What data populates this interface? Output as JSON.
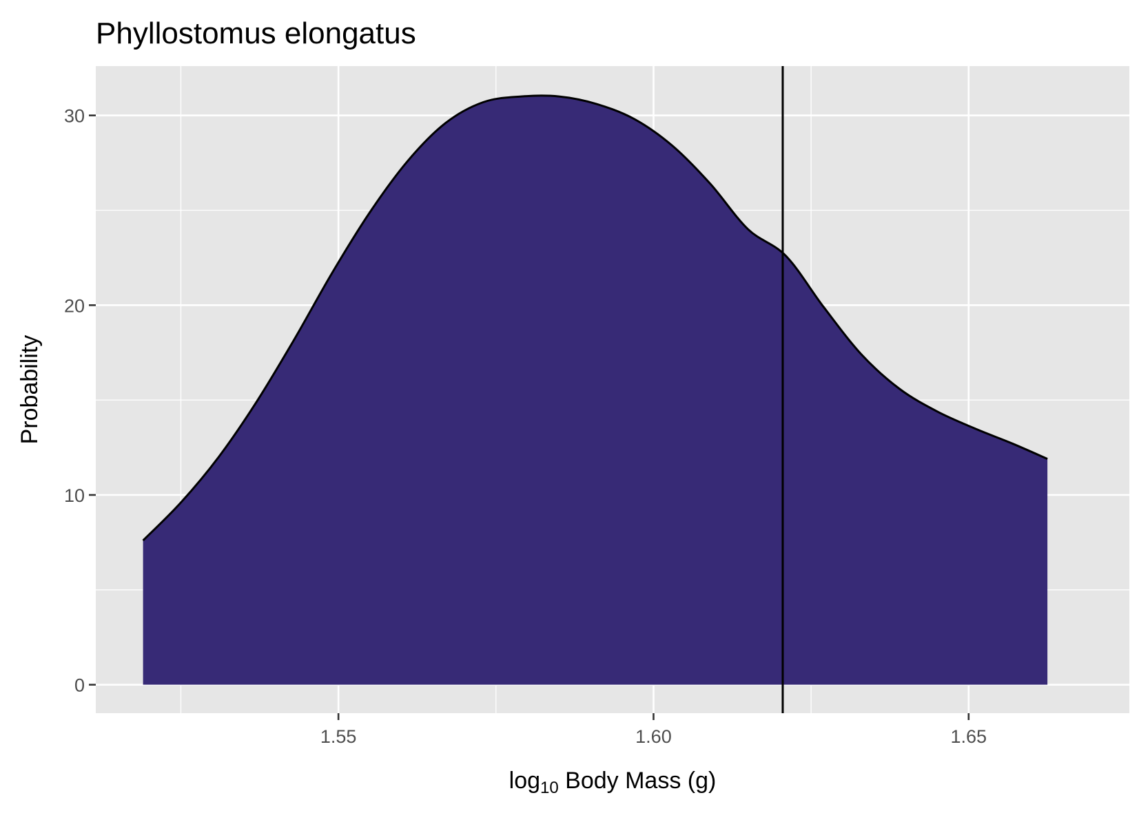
{
  "chart_data": {
    "type": "area",
    "title": "Phyllostomus elongatus",
    "xlabel": {
      "prefix": "log",
      "subscript": "10",
      "suffix": " Body Mass (g)"
    },
    "ylabel": "Probability",
    "xlim": [
      1.5115,
      1.6755
    ],
    "ylim": [
      -1.5,
      32.6
    ],
    "x_ticks": [
      1.55,
      1.6,
      1.65
    ],
    "x_tick_labels": [
      "1.55",
      "1.60",
      "1.65"
    ],
    "y_ticks": [
      0,
      10,
      20,
      30
    ],
    "y_tick_labels": [
      "0",
      "10",
      "20",
      "30"
    ],
    "grid": true,
    "vline_x": 1.6205,
    "fill_color": "#372a76",
    "panel_color": "#e6e6e6",
    "series": [
      {
        "x": [
          1.519,
          1.525,
          1.531,
          1.537,
          1.543,
          1.549,
          1.555,
          1.561,
          1.567,
          1.573,
          1.579,
          1.585,
          1.591,
          1.597,
          1.603,
          1.609,
          1.615,
          1.621,
          1.627,
          1.633,
          1.639,
          1.645,
          1.651,
          1.657,
          1.6625
        ],
        "y": [
          7.6,
          9.6,
          12.0,
          14.9,
          18.2,
          21.7,
          24.9,
          27.6,
          29.6,
          30.7,
          31.0,
          31.0,
          30.6,
          29.8,
          28.4,
          26.4,
          24.0,
          22.6,
          19.9,
          17.4,
          15.6,
          14.4,
          13.5,
          12.7,
          11.9
        ]
      }
    ]
  }
}
